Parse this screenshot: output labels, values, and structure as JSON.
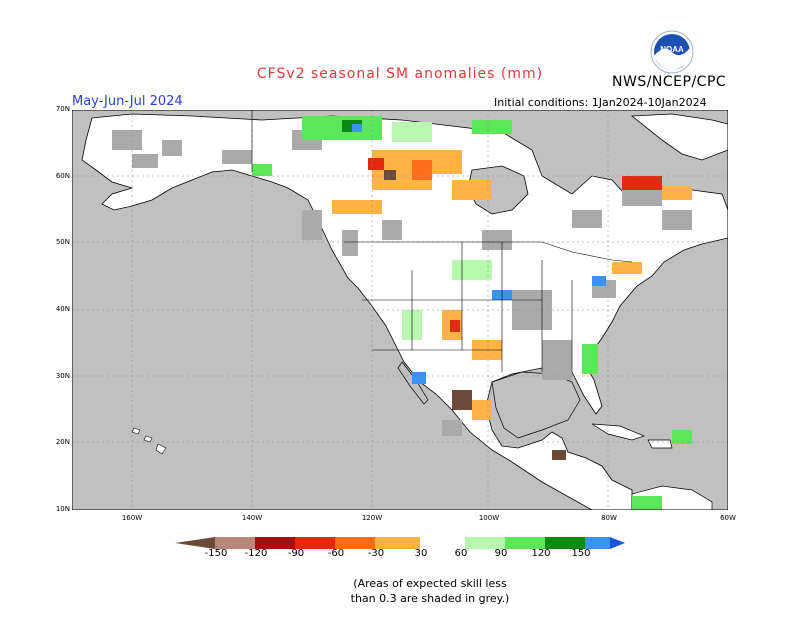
{
  "title": "CFSv2 seasonal SM anomalies (mm)",
  "agency": "NWS/NCEP/CPC",
  "logo_text": "NOAA",
  "season": "May-Jun-Jul 2024",
  "initial_conditions": "Initial conditions: 1Jan2024-10Jan2024",
  "lat_labels": [
    "70N",
    "60N",
    "50N",
    "40N",
    "30N",
    "20N",
    "10N"
  ],
  "lon_labels": [
    "160W",
    "140W",
    "120W",
    "100W",
    "80W",
    "60W"
  ],
  "colorbar": {
    "labels": [
      "-150",
      "-120",
      "-90",
      "-60",
      "-30",
      "30",
      "60",
      "90",
      "120",
      "150"
    ],
    "colors": [
      "#6b4a3a",
      "#b8877a",
      "#a01010",
      "#e22a10",
      "#ff6d1a",
      "#ffb347",
      "#ffffff",
      "#b8f7ae",
      "#5ce65a",
      "#1ab51c",
      "#0a8a12",
      "#3a93f0",
      "#1a56d6"
    ]
  },
  "colors": {
    "ocean": "#c0c0c0",
    "land": "#ffffff",
    "skill_mask": "#aaaaaa",
    "title": "#e8383d",
    "season": "#2a3fd8"
  },
  "note_lines": [
    "(Areas of expected skill less",
    "than 0.3 are shaded in grey.)"
  ]
}
